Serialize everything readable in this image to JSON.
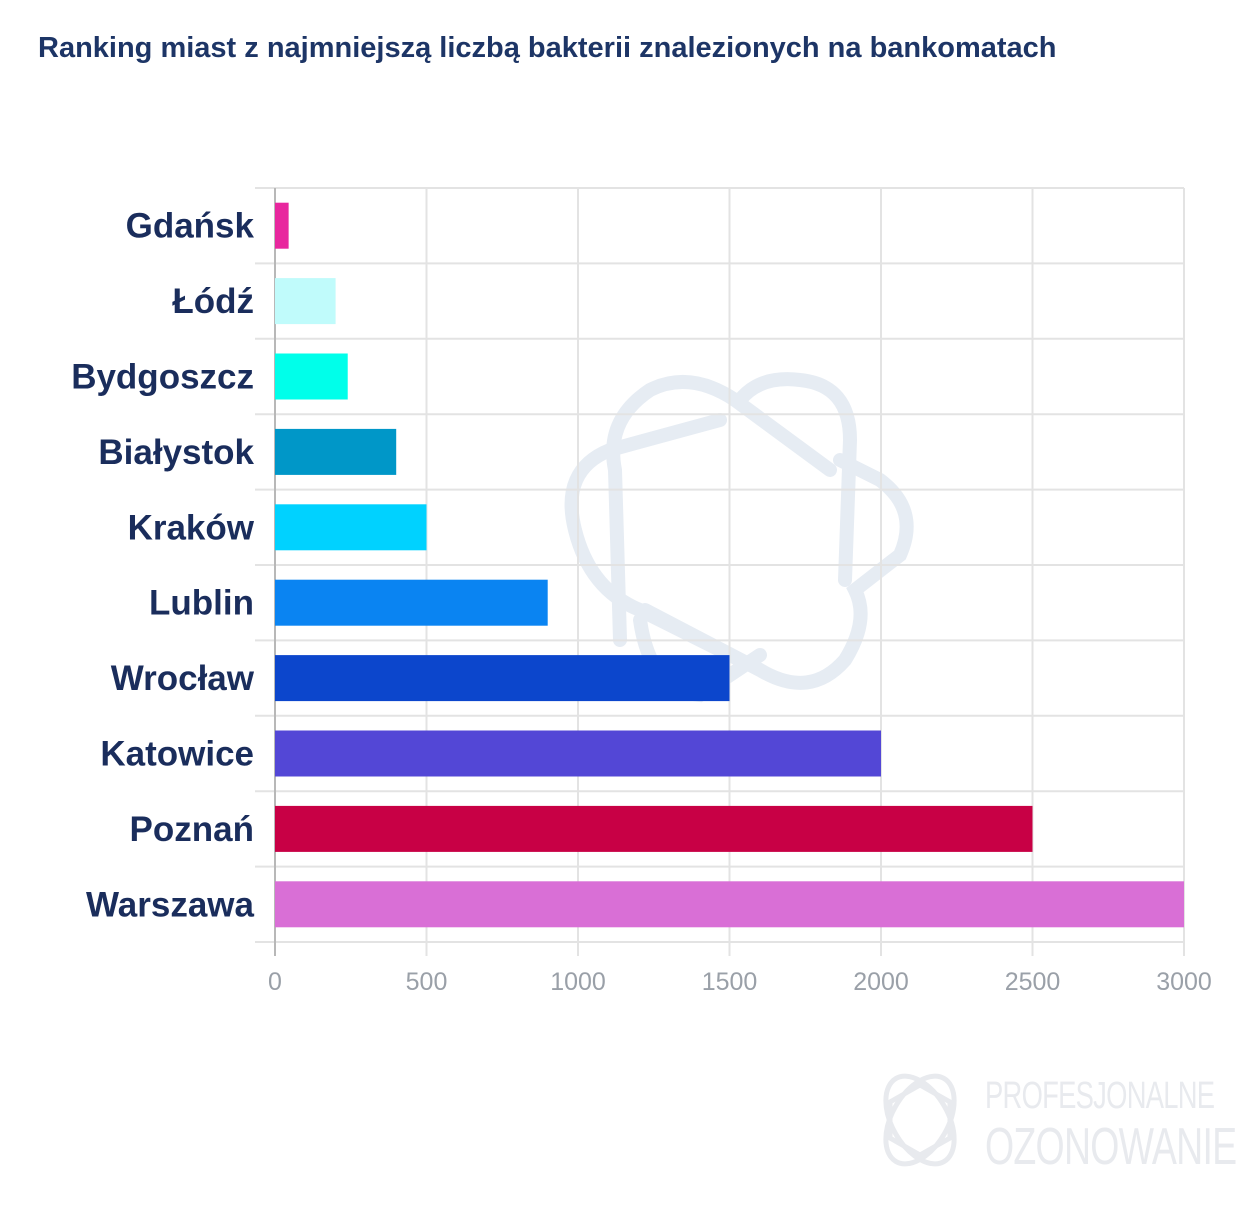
{
  "chart_data": {
    "type": "bar",
    "orientation": "horizontal",
    "title": "Ranking miast z najmniejszą liczbą bakterii znalezionych na bankomatach",
    "categories": [
      "Gdańsk",
      "Łódź",
      "Bydgoszcz",
      "Białystok",
      "Kraków",
      "Lublin",
      "Wrocław",
      "Katowice",
      "Poznań",
      "Warszawa"
    ],
    "values": [
      45,
      200,
      240,
      400,
      500,
      900,
      1500,
      2000,
      2500,
      3000
    ],
    "colors": [
      "#e8279e",
      "#c0fbfb",
      "#00ffea",
      "#0097c8",
      "#00d2ff",
      "#0a84f2",
      "#0c46cc",
      "#5347d6",
      "#c80045",
      "#d96fd6"
    ],
    "xlim": [
      0,
      3000
    ],
    "xticks": [
      "0",
      "500",
      "1000",
      "1500",
      "2000",
      "2500",
      "3000"
    ],
    "xlabel": "",
    "ylabel": "",
    "grid": true
  },
  "watermark": {
    "line1": "PROFESJONALNE",
    "line2": "OZONOWANIE"
  }
}
